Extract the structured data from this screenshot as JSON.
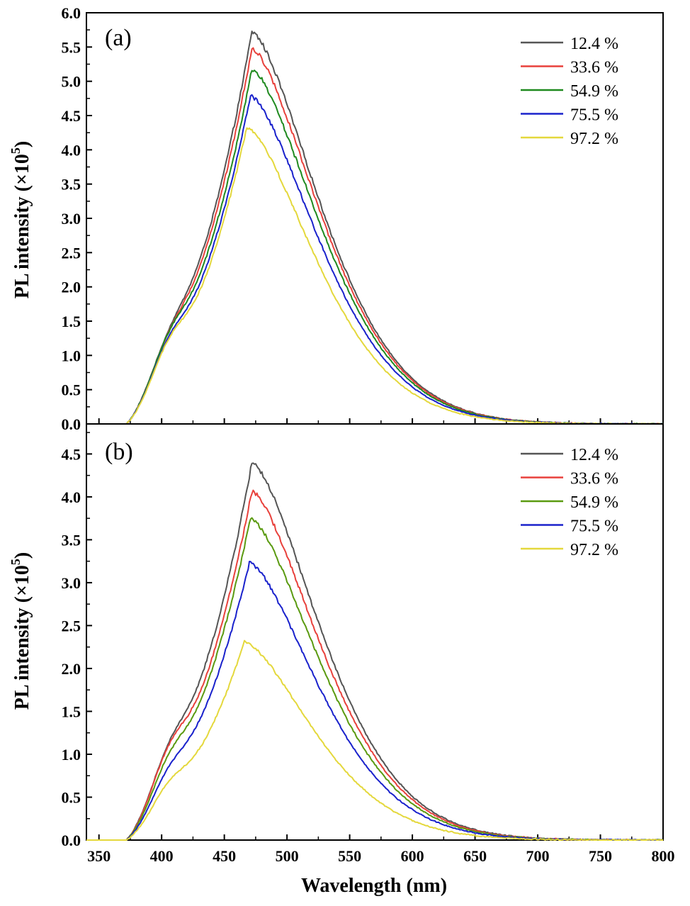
{
  "chart_data": [
    {
      "type": "line",
      "panel_label": "(a)",
      "title": "",
      "xlabel": "Wavelength (nm)",
      "ylabel_main": "PL intensity (×10",
      "ylabel_exp": "5",
      "ylabel_close": ")",
      "xlim": [
        340,
        800
      ],
      "ylim": [
        0,
        6.0
      ],
      "x_ticks": [
        "350",
        "400",
        "450",
        "500",
        "550",
        "600",
        "650",
        "700",
        "750",
        "800"
      ],
      "y_ticks": [
        "0.0",
        "0.5",
        "1.0",
        "1.5",
        "2.0",
        "2.5",
        "3.0",
        "3.5",
        "4.0",
        "4.5",
        "5.0",
        "5.5",
        "6.0"
      ],
      "legend_position": "top-right",
      "series": [
        {
          "name": "12.4 %",
          "color": "#555555",
          "peak_x": 472,
          "peak": 5.72,
          "shoulder": 1.7
        },
        {
          "name": "33.6 %",
          "color": "#e8413c",
          "peak_x": 472,
          "peak": 5.48,
          "shoulder": 1.68
        },
        {
          "name": "54.9 %",
          "color": "#1f8a1f",
          "peak_x": 472,
          "peak": 5.17,
          "shoulder": 1.72
        },
        {
          "name": "75.5 %",
          "color": "#1a22cc",
          "peak_x": 471,
          "peak": 4.78,
          "shoulder": 1.65
        },
        {
          "name": "97.2 %",
          "color": "#e4d83c",
          "peak_x": 468,
          "peak": 4.33,
          "shoulder": 1.63
        }
      ]
    },
    {
      "type": "line",
      "panel_label": "(b)",
      "title": "",
      "xlabel": "Wavelength (nm)",
      "ylabel_main": "PL intensity (×10",
      "ylabel_exp": "5",
      "ylabel_close": ")",
      "xlim": [
        340,
        800
      ],
      "ylim": [
        0,
        4.85
      ],
      "x_ticks": [
        "350",
        "400",
        "450",
        "500",
        "550",
        "600",
        "650",
        "700",
        "750",
        "800"
      ],
      "y_ticks": [
        "0.0",
        "0.5",
        "1.0",
        "1.5",
        "2.0",
        "2.5",
        "3.0",
        "3.5",
        "4.0",
        "4.5"
      ],
      "legend_position": "top-right",
      "series": [
        {
          "name": "12.4 %",
          "color": "#555555",
          "peak_x": 472,
          "peak": 4.4,
          "shoulder": 1.45
        },
        {
          "name": "33.6 %",
          "color": "#e8413c",
          "peak_x": 472,
          "peak": 4.06,
          "shoulder": 1.45
        },
        {
          "name": "54.9 %",
          "color": "#5a9a10",
          "peak_x": 471,
          "peak": 3.75,
          "shoulder": 1.3
        },
        {
          "name": "75.5 %",
          "color": "#1a22cc",
          "peak_x": 470,
          "peak": 3.23,
          "shoulder": 1.1
        },
        {
          "name": "97.2 %",
          "color": "#e4d83c",
          "peak_x": 466,
          "peak": 2.31,
          "shoulder": 0.9
        }
      ]
    }
  ]
}
